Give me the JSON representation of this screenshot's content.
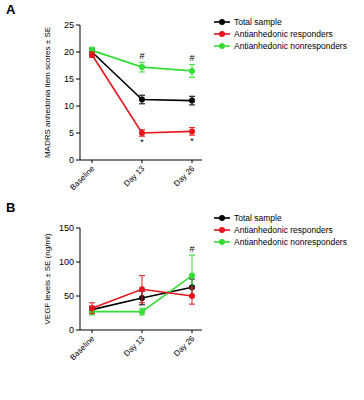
{
  "chart_data": [
    {
      "type": "line",
      "label": "A",
      "y_label": "MADRS anhedonia item scores ± SE",
      "categories": [
        "Baseline",
        "Day 13",
        "Day 26"
      ],
      "ylim": [
        0,
        25
      ],
      "yticks": [
        0,
        5,
        10,
        15,
        20,
        25
      ],
      "legend": "top-right",
      "marker": "circle",
      "series": [
        {
          "name": "Total sample",
          "color": "#000000",
          "values": [
            20.0,
            11.2,
            11.0
          ],
          "errors": [
            0.7,
            0.8,
            0.8
          ]
        },
        {
          "name": "Antianhedonic responders",
          "color": "#e8141c",
          "values": [
            19.5,
            5.0,
            5.3
          ],
          "errors": [
            0.5,
            0.6,
            0.7
          ]
        },
        {
          "name": "Antianhedonic nonresponders",
          "color": "#33dd33",
          "values": [
            20.3,
            17.2,
            16.5
          ],
          "errors": [
            0.6,
            0.9,
            1.2
          ]
        }
      ],
      "annotations": [
        {
          "text": "#",
          "series": "Antianhedonic nonresponders",
          "category": "Day 13"
        },
        {
          "text": "#",
          "series": "Antianhedonic nonresponders",
          "category": "Day 26"
        },
        {
          "text": "*",
          "series": "Antianhedonic responders",
          "category": "Day 13"
        },
        {
          "text": "*",
          "series": "Antianhedonic responders",
          "category": "Day 26"
        }
      ]
    },
    {
      "type": "line",
      "label": "B",
      "y_label": "VEGF levels ± SE (ng/ml)",
      "categories": [
        "Baseline",
        "Day 13",
        "Day 26"
      ],
      "ylim": [
        0,
        150
      ],
      "yticks": [
        0,
        50,
        100,
        150
      ],
      "legend": "top-right",
      "marker": "circle",
      "series": [
        {
          "name": "Total sample",
          "color": "#000000",
          "values": [
            30,
            47,
            63
          ],
          "errors": [
            5,
            10,
            12
          ]
        },
        {
          "name": "Antianhedonic responders",
          "color": "#e8141c",
          "values": [
            32,
            60,
            50
          ],
          "errors": [
            8,
            20,
            12
          ]
        },
        {
          "name": "Antianhedonic nonresponders",
          "color": "#33dd33",
          "values": [
            27,
            27,
            80
          ],
          "errors": [
            5,
            5,
            30
          ]
        }
      ],
      "annotations": [
        {
          "text": "#",
          "series": "Antianhedonic nonresponders",
          "category": "Day 26"
        }
      ]
    }
  ]
}
